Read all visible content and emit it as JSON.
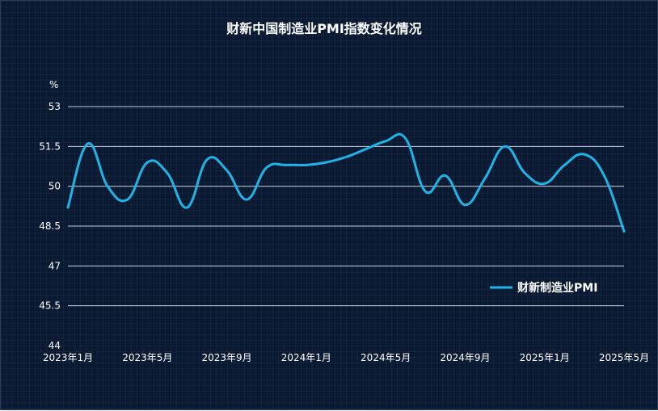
{
  "chart_data": {
    "type": "line",
    "title": "财新中国制造业PMI指数变化情况",
    "ylabel": "%",
    "ylim": [
      44,
      53
    ],
    "yticks": [
      44,
      45.5,
      47,
      48.5,
      50,
      51.5,
      53
    ],
    "xtick_labels": [
      "2023年1月",
      "2023年5月",
      "2023年9月",
      "2024年1月",
      "2024年5月",
      "2024年9月",
      "2025年1月",
      "2025年5月"
    ],
    "legend": "right",
    "colors": {
      "line": "#1eb4e6",
      "background": "#0a1a33"
    },
    "series": [
      {
        "name": "财新制造业PMI",
        "x": [
          "2023-01",
          "2023-02",
          "2023-03",
          "2023-04",
          "2023-05",
          "2023-06",
          "2023-07",
          "2023-08",
          "2023-09",
          "2023-10",
          "2023-11",
          "2023-12",
          "2024-01",
          "2024-02",
          "2024-03",
          "2024-04",
          "2024-05",
          "2024-06",
          "2024-07",
          "2024-08",
          "2024-09",
          "2024-10",
          "2024-11",
          "2024-12",
          "2025-01",
          "2025-02",
          "2025-03",
          "2025-04",
          "2025-05"
        ],
        "values": [
          49.2,
          51.6,
          50.0,
          49.5,
          50.9,
          50.5,
          49.2,
          51.0,
          50.6,
          49.5,
          50.7,
          50.8,
          50.8,
          50.9,
          51.1,
          51.4,
          51.7,
          51.8,
          49.8,
          50.4,
          49.3,
          50.3,
          51.5,
          50.5,
          50.1,
          50.8,
          51.2,
          50.4,
          48.3
        ]
      }
    ]
  }
}
